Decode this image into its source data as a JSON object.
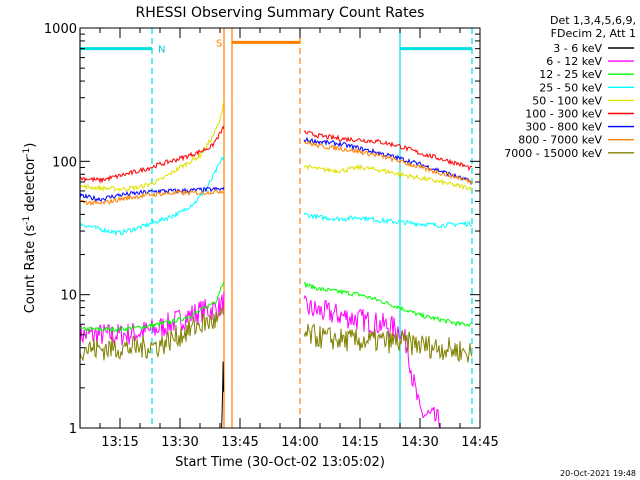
{
  "chart_data": {
    "type": "line",
    "title": "RHESSI Observing Summary Count Rates",
    "xlabel": "Start Time (30-Oct-02 13:05:02)",
    "ylabel_main": "Count Rate (s",
    "ylabel_sup1": "-1",
    "ylabel_mid": " detector",
    "ylabel_sup2": "-1",
    "ylabel_end": ")",
    "yscale": "log",
    "xlim": [
      "13:05",
      "14:45"
    ],
    "ylim": [
      1,
      1000
    ],
    "x_ticks": [
      "13:15",
      "13:30",
      "13:45",
      "14:00",
      "14:15",
      "14:30",
      "14:45"
    ],
    "y_ticks": [
      {
        "value": 1,
        "label": "1"
      },
      {
        "value": 10,
        "label": "10"
      },
      {
        "value": 100,
        "label": "100"
      },
      {
        "value": 1000,
        "label": "1000"
      }
    ],
    "legend_header": [
      "Det 1,3,4,5,6,9,",
      "FDecim 2, Att 1"
    ],
    "legend_position": "right",
    "series": [
      {
        "name": "3 - 6 keV",
        "color": "#000000",
        "segments": [
          {
            "x": [
              "13:40.4",
              "13:40.6",
              "13:40.8",
              "13:41.0"
            ],
            "values": [
              1,
              1.5,
              3.5,
              1
            ]
          }
        ]
      },
      {
        "name": "6 - 12 keV",
        "color": "#ff00ff",
        "segments": [
          {
            "x": [
              "13:05",
              "13:15",
              "13:20",
              "13:24",
              "13:30",
              "13:35",
              "13:40",
              "13:41"
            ],
            "values": [
              5,
              5,
              5.2,
              5.5,
              6.5,
              7.5,
              8,
              9
            ]
          },
          {
            "x": [
              "14:01",
              "14:05",
              "14:10",
              "14:15",
              "14:20",
              "14:25",
              "14:27",
              "14:28",
              "14:30",
              "14:33",
              "14:35"
            ],
            "values": [
              8,
              7.5,
              7,
              6.5,
              6,
              5.5,
              4,
              2.5,
              1.3,
              1.2,
              1.1
            ]
          }
        ]
      },
      {
        "name": "12 - 25 keV",
        "color": "#00ff00",
        "segments": [
          {
            "x": [
              "13:05",
              "13:15",
              "13:20",
              "13:25",
              "13:30",
              "13:35",
              "13:39",
              "13:41"
            ],
            "values": [
              5.5,
              5.5,
              5.7,
              6,
              6.5,
              7.5,
              9,
              13
            ]
          },
          {
            "x": [
              "14:01",
              "14:05",
              "14:10",
              "14:15",
              "14:20",
              "14:25",
              "14:30",
              "14:35",
              "14:40",
              "14:43"
            ],
            "values": [
              12,
              11,
              10.5,
              10,
              9,
              8,
              7,
              6.5,
              6,
              6
            ]
          }
        ]
      },
      {
        "name": "25 - 50 keV",
        "color": "#00ffff",
        "segments": [
          {
            "x": [
              "13:05",
              "13:10",
              "13:15",
              "13:20",
              "13:25",
              "13:30",
              "13:34",
              "13:37",
              "13:39",
              "13:41"
            ],
            "values": [
              34,
              31,
              29,
              32,
              36,
              41,
              50,
              65,
              85,
              110
            ]
          },
          {
            "x": [
              "14:01",
              "14:05",
              "14:10",
              "14:15",
              "14:20",
              "14:25",
              "14:30",
              "14:35",
              "14:40",
              "14:43"
            ],
            "values": [
              40,
              38,
              37,
              38,
              36,
              35,
              34,
              33,
              34,
              34
            ]
          }
        ]
      },
      {
        "name": "50 - 100 keV",
        "color": "#e0e000",
        "segments": [
          {
            "x": [
              "13:05",
              "13:10",
              "13:15",
              "13:20",
              "13:25",
              "13:30",
              "13:35",
              "13:38",
              "13:40",
              "13:41"
            ],
            "values": [
              65,
              63,
              62,
              64,
              72,
              90,
              110,
              150,
              200,
              290
            ]
          },
          {
            "x": [
              "14:01",
              "14:05",
              "14:10",
              "14:15",
              "14:20",
              "14:25",
              "14:30",
              "14:35",
              "14:40",
              "14:43"
            ],
            "values": [
              92,
              87,
              85,
              90,
              86,
              80,
              75,
              70,
              65,
              63
            ]
          }
        ]
      },
      {
        "name": "100 - 300 keV",
        "color": "#ff0000",
        "segments": [
          {
            "x": [
              "13:05",
              "13:10",
              "13:15",
              "13:20",
              "13:25",
              "13:30",
              "13:35",
              "13:38",
              "13:41"
            ],
            "values": [
              75,
              72,
              78,
              85,
              95,
              105,
              118,
              130,
              180
            ]
          },
          {
            "x": [
              "14:01",
              "14:05",
              "14:10",
              "14:15",
              "14:20",
              "14:25",
              "14:30",
              "14:35",
              "14:40",
              "14:43"
            ],
            "values": [
              165,
              155,
              148,
              145,
              140,
              130,
              115,
              105,
              95,
              88
            ]
          }
        ]
      },
      {
        "name": "300 - 800 keV",
        "color": "#0000ff",
        "segments": [
          {
            "x": [
              "13:05",
              "13:10",
              "13:15",
              "13:20",
              "13:25",
              "13:30",
              "13:35",
              "13:41"
            ],
            "values": [
              55,
              52,
              56,
              58,
              60,
              60,
              61,
              62
            ]
          },
          {
            "x": [
              "14:01",
              "14:05",
              "14:10",
              "14:15",
              "14:20",
              "14:25",
              "14:30",
              "14:35",
              "14:40",
              "14:43"
            ],
            "values": [
              145,
              140,
              135,
              125,
              115,
              105,
              95,
              85,
              75,
              70
            ]
          }
        ]
      },
      {
        "name": "800 - 7000 keV",
        "color": "#ff8000",
        "segments": [
          {
            "x": [
              "13:05",
              "13:10",
              "13:15",
              "13:20",
              "13:25",
              "13:30",
              "13:35",
              "13:41"
            ],
            "values": [
              50,
              48,
              52,
              55,
              57,
              58,
              58,
              60
            ]
          },
          {
            "x": [
              "14:01",
              "14:05",
              "14:10",
              "14:15",
              "14:20",
              "14:25",
              "14:30",
              "14:35",
              "14:40",
              "14:43"
            ],
            "values": [
              140,
              130,
              125,
              118,
              110,
              100,
              90,
              82,
              75,
              70
            ]
          }
        ]
      },
      {
        "name": "7000 - 15000 keV",
        "color": "#808000",
        "segments": [
          {
            "x": [
              "13:05",
              "13:10",
              "13:15",
              "13:20",
              "13:25",
              "13:30",
              "13:35",
              "13:40",
              "13:41"
            ],
            "values": [
              4,
              3.9,
              4,
              4,
              4.2,
              5,
              6,
              6.5,
              7
            ]
          },
          {
            "x": [
              "14:01",
              "14:05",
              "14:10",
              "14:15",
              "14:20",
              "14:25",
              "14:30",
              "14:35",
              "14:40",
              "14:43"
            ],
            "values": [
              5,
              4.8,
              4.6,
              4.5,
              4.5,
              4.4,
              4.2,
              4,
              3.8,
              3.6
            ]
          }
        ]
      }
    ],
    "annotations": {
      "night": [
        {
          "label": "",
          "x_start": "13:05",
          "x_end": "13:23",
          "level": 700
        },
        {
          "label": "N",
          "x_start": "13:23",
          "x_end": "13:23",
          "level": 700
        },
        {
          "label": "",
          "x_start": "14:25",
          "x_end": "14:43",
          "level": 700
        }
      ],
      "saa": {
        "label": "S",
        "x_start": "13:43",
        "x_end": "14:00",
        "level": 780
      },
      "n_label": "N",
      "s_label": "S",
      "dashed_cyan_x": [
        "13:23",
        "14:43"
      ],
      "solid_cyan_x": [
        "13:05",
        "14:25"
      ],
      "solid_orange_x": [
        "13:41",
        "13:43"
      ],
      "dashed_orange_x": [
        "14:00"
      ]
    },
    "timestamp": "20-Oct-2021 19:48"
  }
}
